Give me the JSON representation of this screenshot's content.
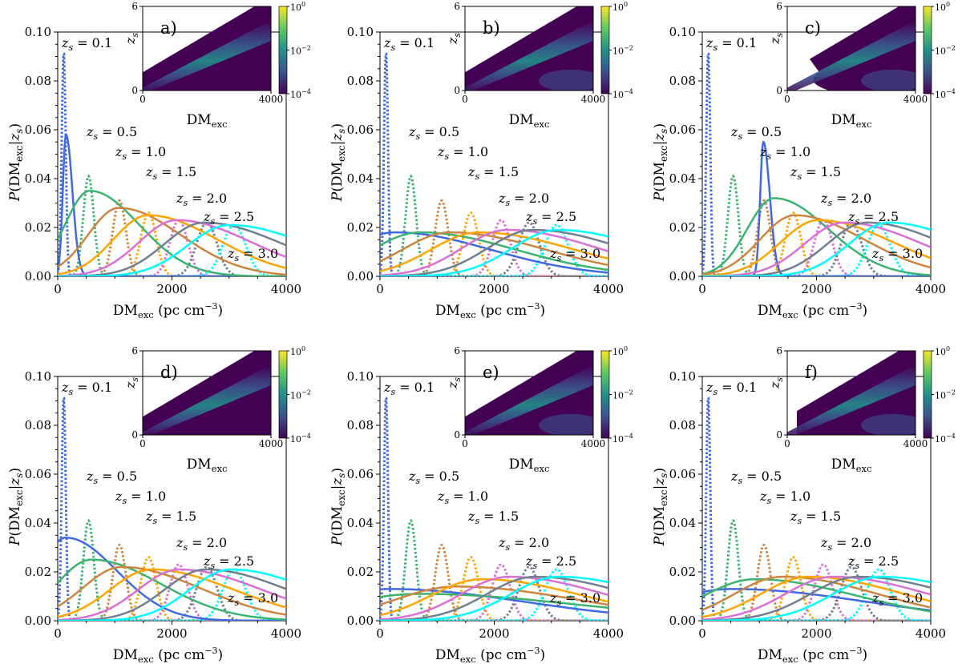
{
  "figure": {
    "description_free": true,
    "gradient_colors": [
      "#440154",
      "#3b528b",
      "#21918c",
      "#5ec962",
      "#fde725"
    ]
  },
  "series_styles": [
    {
      "z": "0.1",
      "color": "#4169e1"
    },
    {
      "z": "0.5",
      "color": "#3cb371"
    },
    {
      "z": "1.0",
      "color": "#cd853f"
    },
    {
      "z": "1.5",
      "color": "#ffa500"
    },
    {
      "z": "2.0",
      "color": "#da70d6"
    },
    {
      "z": "2.5",
      "color": "#708090"
    },
    {
      "z": "3.0",
      "color": "#00ffff"
    }
  ],
  "chart_data": [
    {
      "type": "line",
      "panel": "a)",
      "xlabel": "DMexc (pc cm−3)",
      "ylabel": "P(DMexc|zs)",
      "xlim": [
        0,
        4000
      ],
      "ylim": [
        0,
        0.1
      ],
      "xticks": [
        0,
        2000,
        4000
      ],
      "yticks": [
        0.0,
        0.02,
        0.04,
        0.06,
        0.08,
        0.1
      ],
      "ytick_labels": [
        "0.00",
        "0.02",
        "0.04",
        "0.06",
        "0.08",
        "0.10"
      ],
      "series_labels": [
        "zs = 0.1",
        "zs = 0.5",
        "zs = 1.0",
        "zs = 1.5",
        "zs = 2.0",
        "zs = 2.5",
        "zs = 3.0"
      ],
      "dotted_peaks": [
        {
          "z": "0.1",
          "x": 105,
          "y": 0.092
        },
        {
          "z": "0.5",
          "x": 540,
          "y": 0.041
        },
        {
          "z": "1.0",
          "x": 1080,
          "y": 0.031
        },
        {
          "z": "1.5",
          "x": 1590,
          "y": 0.026
        },
        {
          "z": "2.0",
          "x": 2120,
          "y": 0.023
        },
        {
          "z": "2.5",
          "x": 2610,
          "y": 0.022
        },
        {
          "z": "3.0",
          "x": 3090,
          "y": 0.021
        }
      ],
      "solid_peaks": [
        {
          "z": "0.1",
          "x": 145,
          "y": 0.058
        },
        {
          "z": "0.5",
          "x": 560,
          "y": 0.035
        },
        {
          "z": "1.0",
          "x": 1070,
          "y": 0.028
        },
        {
          "z": "1.5",
          "x": 1580,
          "y": 0.025
        },
        {
          "z": "2.0",
          "x": 2080,
          "y": 0.023
        },
        {
          "z": "2.5",
          "x": 2560,
          "y": 0.022
        },
        {
          "z": "3.0",
          "x": 3000,
          "y": 0.021
        }
      ],
      "inset": {
        "ylabel": "zs",
        "xlabel": "DMexc",
        "xlim": [
          0,
          4000
        ],
        "ylim": [
          0,
          6
        ],
        "xticks": [
          0,
          4000
        ],
        "yticks": [
          0,
          6
        ],
        "colorbar_ticks": [
          "10^0",
          "10^-2",
          "10^-4"
        ],
        "clip_left": 0,
        "shape": "band",
        "inner_bend": false
      }
    },
    {
      "type": "line",
      "panel": "b)",
      "xlabel": "DMexc (pc cm−3)",
      "ylabel": "P(DMexc|zs)",
      "xlim": [
        0,
        4000
      ],
      "ylim": [
        0,
        0.1
      ],
      "xticks": [
        0,
        2000,
        4000
      ],
      "yticks": [
        0.0,
        0.02,
        0.04,
        0.06,
        0.08,
        0.1
      ],
      "ytick_labels": [
        "0.00",
        "0.02",
        "0.04",
        "0.06",
        "0.08",
        "0.10"
      ],
      "series_labels": [
        "zs = 0.1",
        "zs = 0.5",
        "zs = 1.0",
        "zs = 1.5",
        "zs = 2.0",
        "zs = 2.5",
        "zs = 3.0"
      ],
      "dotted_peaks": [
        {
          "z": "0.1",
          "x": 105,
          "y": 0.092
        },
        {
          "z": "0.5",
          "x": 540,
          "y": 0.041
        },
        {
          "z": "1.0",
          "x": 1080,
          "y": 0.031
        },
        {
          "z": "1.5",
          "x": 1590,
          "y": 0.026
        },
        {
          "z": "2.0",
          "x": 2120,
          "y": 0.023
        },
        {
          "z": "2.5",
          "x": 2610,
          "y": 0.022
        },
        {
          "z": "3.0",
          "x": 3090,
          "y": 0.021
        }
      ],
      "solid_peaks": [
        {
          "z": "0.1",
          "x": 260,
          "y": 0.018
        },
        {
          "z": "0.5",
          "x": 700,
          "y": 0.018
        },
        {
          "z": "1.0",
          "x": 1230,
          "y": 0.018
        },
        {
          "z": "1.5",
          "x": 1730,
          "y": 0.018
        },
        {
          "z": "2.0",
          "x": 2230,
          "y": 0.019
        },
        {
          "z": "2.5",
          "x": 2680,
          "y": 0.019
        },
        {
          "z": "3.0",
          "x": 3110,
          "y": 0.019
        }
      ],
      "inset": {
        "ylabel": "zs",
        "xlabel": "DMexc",
        "xlim": [
          0,
          4000
        ],
        "ylim": [
          0,
          6
        ],
        "xticks": [
          0,
          4000
        ],
        "yticks": [
          0,
          6
        ],
        "colorbar_ticks": [
          "10^0",
          "10^-2",
          "10^-4"
        ],
        "clip_left": 0,
        "shape": "band",
        "inner_bend": true
      }
    },
    {
      "type": "line",
      "panel": "c)",
      "xlabel": "DMexc (pc cm−3)",
      "ylabel": "P(DMexc|zs)",
      "xlim": [
        0,
        4000
      ],
      "ylim": [
        0,
        0.1
      ],
      "xticks": [
        0,
        2000,
        4000
      ],
      "yticks": [
        0.0,
        0.02,
        0.04,
        0.06,
        0.08,
        0.1
      ],
      "ytick_labels": [
        "0.00",
        "0.02",
        "0.04",
        "0.06",
        "0.08",
        "0.10"
      ],
      "series_labels": [
        "zs = 0.1",
        "zs = 0.5",
        "zs = 1.0",
        "zs = 1.5",
        "zs = 2.0",
        "zs = 2.5",
        "zs = 3.0"
      ],
      "dotted_peaks": [
        {
          "z": "0.1",
          "x": 105,
          "y": 0.092
        },
        {
          "z": "0.5",
          "x": 540,
          "y": 0.041
        },
        {
          "z": "1.0",
          "x": 1080,
          "y": 0.031
        },
        {
          "z": "1.5",
          "x": 1590,
          "y": 0.026
        },
        {
          "z": "2.0",
          "x": 2120,
          "y": 0.023
        },
        {
          "z": "2.5",
          "x": 2610,
          "y": 0.022
        },
        {
          "z": "3.0",
          "x": 3090,
          "y": 0.021
        }
      ],
      "solid_peaks": [
        {
          "z": "0.1",
          "x": 1070,
          "y": 0.055
        },
        {
          "z": "0.5",
          "x": 1260,
          "y": 0.032
        },
        {
          "z": "1.0",
          "x": 1620,
          "y": 0.025
        },
        {
          "z": "1.5",
          "x": 2030,
          "y": 0.023
        },
        {
          "z": "2.0",
          "x": 2480,
          "y": 0.022
        },
        {
          "z": "2.5",
          "x": 2880,
          "y": 0.022
        },
        {
          "z": "3.0",
          "x": 3260,
          "y": 0.022
        }
      ],
      "inset": {
        "ylabel": "zs",
        "xlabel": "DMexc",
        "xlim": [
          0,
          4000
        ],
        "ylim": [
          0,
          6
        ],
        "xticks": [
          0,
          4000
        ],
        "yticks": [
          0,
          6
        ],
        "colorbar_ticks": [
          "10^0",
          "10^-2",
          "10^-4"
        ],
        "clip_left": 700,
        "shape": "hook",
        "inner_bend": true
      }
    },
    {
      "type": "line",
      "panel": "d)",
      "xlabel": "DMexc (pc cm−3)",
      "ylabel": "P(DMexc|zs)",
      "xlim": [
        0,
        4000
      ],
      "ylim": [
        0,
        0.1
      ],
      "xticks": [
        0,
        2000,
        4000
      ],
      "yticks": [
        0.0,
        0.02,
        0.04,
        0.06,
        0.08,
        0.1
      ],
      "ytick_labels": [
        "0.00",
        "0.02",
        "0.04",
        "0.06",
        "0.08",
        "0.10"
      ],
      "series_labels": [
        "zs = 0.1",
        "zs = 0.5",
        "zs = 1.0",
        "zs = 1.5",
        "zs = 2.0",
        "zs = 2.5",
        "zs = 3.0"
      ],
      "dotted_peaks": [
        {
          "z": "0.1",
          "x": 105,
          "y": 0.092
        },
        {
          "z": "0.5",
          "x": 540,
          "y": 0.041
        },
        {
          "z": "1.0",
          "x": 1080,
          "y": 0.031
        },
        {
          "z": "1.5",
          "x": 1590,
          "y": 0.026
        },
        {
          "z": "2.0",
          "x": 2120,
          "y": 0.023
        },
        {
          "z": "2.5",
          "x": 2610,
          "y": 0.022
        },
        {
          "z": "3.0",
          "x": 3090,
          "y": 0.021
        }
      ],
      "solid_peaks": [
        {
          "z": "0.1",
          "x": 140,
          "y": 0.034
        },
        {
          "z": "0.5",
          "x": 590,
          "y": 0.025
        },
        {
          "z": "1.0",
          "x": 1120,
          "y": 0.022
        },
        {
          "z": "1.5",
          "x": 1640,
          "y": 0.021
        },
        {
          "z": "2.0",
          "x": 2130,
          "y": 0.021
        },
        {
          "z": "2.5",
          "x": 2590,
          "y": 0.021
        },
        {
          "z": "3.0",
          "x": 3030,
          "y": 0.021
        }
      ],
      "inset": {
        "ylabel": "zs",
        "xlabel": "DMexc",
        "xlim": [
          0,
          4000
        ],
        "ylim": [
          0,
          6
        ],
        "xticks": [
          0,
          4000
        ],
        "yticks": [
          0,
          6
        ],
        "colorbar_ticks": [
          "10^0",
          "10^-2",
          "10^-4"
        ],
        "clip_left": 0,
        "shape": "band",
        "inner_bend": false
      }
    },
    {
      "type": "line",
      "panel": "e)",
      "xlabel": "DMexc (pc cm−3)",
      "ylabel": "P(DMexc|zs)",
      "xlim": [
        0,
        4000
      ],
      "ylim": [
        0,
        0.1
      ],
      "xticks": [
        0,
        2000,
        4000
      ],
      "yticks": [
        0.0,
        0.02,
        0.04,
        0.06,
        0.08,
        0.1
      ],
      "ytick_labels": [
        "0.00",
        "0.02",
        "0.04",
        "0.06",
        "0.08",
        "0.10"
      ],
      "series_labels": [
        "zs = 0.1",
        "zs = 0.5",
        "zs = 1.0",
        "zs = 1.5",
        "zs = 2.0",
        "zs = 2.5",
        "zs = 3.0"
      ],
      "dotted_peaks": [
        {
          "z": "0.1",
          "x": 105,
          "y": 0.092
        },
        {
          "z": "0.5",
          "x": 540,
          "y": 0.041
        },
        {
          "z": "1.0",
          "x": 1080,
          "y": 0.031
        },
        {
          "z": "1.5",
          "x": 1590,
          "y": 0.026
        },
        {
          "z": "2.0",
          "x": 2120,
          "y": 0.023
        },
        {
          "z": "2.5",
          "x": 2610,
          "y": 0.022
        },
        {
          "z": "3.0",
          "x": 3090,
          "y": 0.021
        }
      ],
      "solid_peaks": [
        {
          "z": "0.1",
          "x": 170,
          "y": 0.013
        },
        {
          "z": "0.5",
          "x": 680,
          "y": 0.011
        },
        {
          "z": "1.0",
          "x": 1330,
          "y": 0.014
        },
        {
          "z": "1.5",
          "x": 1780,
          "y": 0.017
        },
        {
          "z": "2.0",
          "x": 2260,
          "y": 0.018
        },
        {
          "z": "2.5",
          "x": 2710,
          "y": 0.018
        },
        {
          "z": "3.0",
          "x": 3130,
          "y": 0.018
        }
      ],
      "inset": {
        "ylabel": "zs",
        "xlabel": "DMexc",
        "xlim": [
          0,
          4000
        ],
        "ylim": [
          0,
          6
        ],
        "xticks": [
          0,
          4000
        ],
        "yticks": [
          0,
          6
        ],
        "colorbar_ticks": [
          "10^0",
          "10^-2",
          "10^-4"
        ],
        "clip_left": 0,
        "shape": "band",
        "inner_bend": true
      }
    },
    {
      "type": "line",
      "panel": "f)",
      "xlabel": "DMexc (pc cm−3)",
      "ylabel": "P(DMexc|zs)",
      "xlim": [
        0,
        4000
      ],
      "ylim": [
        0,
        0.1
      ],
      "xticks": [
        0,
        2000,
        4000
      ],
      "yticks": [
        0.0,
        0.02,
        0.04,
        0.06,
        0.08,
        0.1
      ],
      "ytick_labels": [
        "0.00",
        "0.02",
        "0.04",
        "0.06",
        "0.08",
        "0.10"
      ],
      "series_labels": [
        "zs = 0.1",
        "zs = 0.5",
        "zs = 1.0",
        "zs = 1.5",
        "zs = 2.0",
        "zs = 2.5",
        "zs = 3.0"
      ],
      "dotted_peaks": [
        {
          "z": "0.1",
          "x": 105,
          "y": 0.092
        },
        {
          "z": "0.5",
          "x": 540,
          "y": 0.041
        },
        {
          "z": "1.0",
          "x": 1080,
          "y": 0.031
        },
        {
          "z": "1.5",
          "x": 1590,
          "y": 0.026
        },
        {
          "z": "2.0",
          "x": 2120,
          "y": 0.023
        },
        {
          "z": "2.5",
          "x": 2610,
          "y": 0.022
        },
        {
          "z": "3.0",
          "x": 3090,
          "y": 0.021
        }
      ],
      "solid_peaks": [
        {
          "z": "0.1",
          "x": 520,
          "y": 0.013
        },
        {
          "z": "0.5",
          "x": 920,
          "y": 0.017
        },
        {
          "z": "1.0",
          "x": 1400,
          "y": 0.018
        },
        {
          "z": "1.5",
          "x": 1860,
          "y": 0.018
        },
        {
          "z": "2.0",
          "x": 2290,
          "y": 0.018
        },
        {
          "z": "2.5",
          "x": 2730,
          "y": 0.018
        },
        {
          "z": "3.0",
          "x": 3130,
          "y": 0.018
        }
      ],
      "inset": {
        "ylabel": "zs",
        "xlabel": "DMexc",
        "xlim": [
          0,
          4000
        ],
        "ylim": [
          0,
          6
        ],
        "xticks": [
          0,
          4000
        ],
        "yticks": [
          0,
          6
        ],
        "colorbar_ticks": [
          "10^0",
          "10^-2",
          "10^-4"
        ],
        "clip_left": 300,
        "shape": "band",
        "inner_bend": true
      }
    }
  ]
}
